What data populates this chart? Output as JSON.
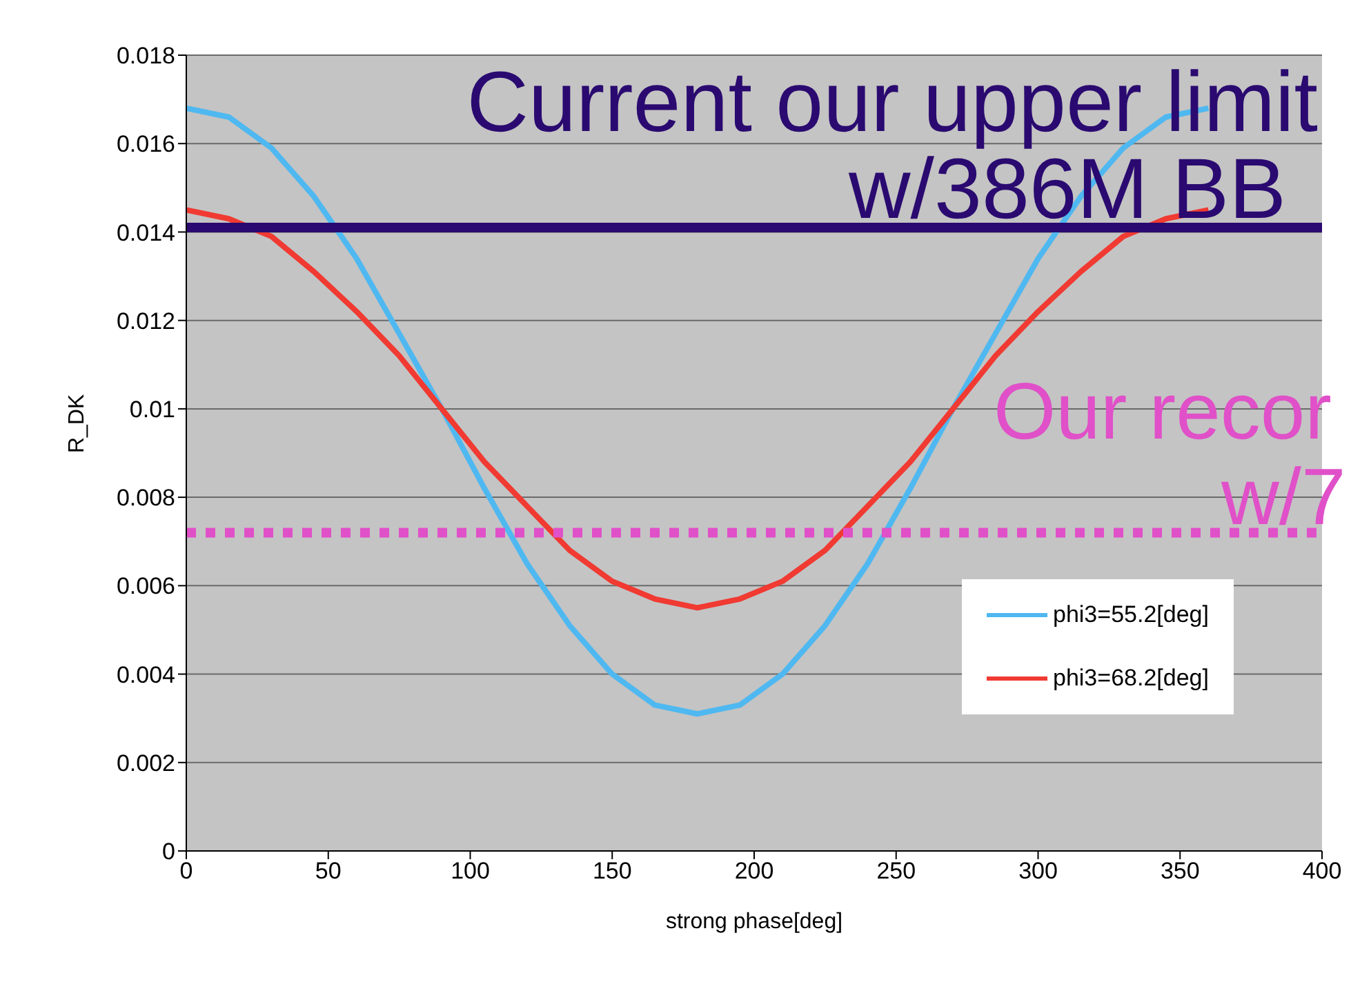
{
  "chart_data": {
    "type": "line",
    "xlabel": "strong phase[deg]",
    "ylabel": "R_DK",
    "x": [
      0,
      15,
      30,
      45,
      60,
      75,
      90,
      105,
      120,
      135,
      150,
      165,
      180,
      195,
      210,
      225,
      240,
      255,
      270,
      285,
      300,
      315,
      330,
      345,
      360
    ],
    "series": [
      {
        "name": "phi3=55.2[deg]",
        "color": "#4fb8f0",
        "values": [
          0.0168,
          0.0166,
          0.0159,
          0.0148,
          0.0134,
          0.0117,
          0.01,
          0.0082,
          0.0065,
          0.0051,
          0.004,
          0.0033,
          0.0031,
          0.0033,
          0.004,
          0.0051,
          0.0065,
          0.0082,
          0.01,
          0.0117,
          0.0134,
          0.0148,
          0.0159,
          0.0166,
          0.0168
        ]
      },
      {
        "name": "phi3=68.2[deg]",
        "color": "#f03a32",
        "values": [
          0.0145,
          0.0143,
          0.0139,
          0.0131,
          0.0122,
          0.0112,
          0.01,
          0.0088,
          0.0078,
          0.0068,
          0.0061,
          0.0057,
          0.0055,
          0.0057,
          0.0061,
          0.0068,
          0.0078,
          0.0088,
          0.01,
          0.0112,
          0.0122,
          0.0131,
          0.0139,
          0.0143,
          0.0145
        ]
      }
    ],
    "xlim": [
      0,
      400
    ],
    "xticks": [
      0,
      50,
      100,
      150,
      200,
      250,
      300,
      350,
      400
    ],
    "ylim": [
      0,
      0.018
    ],
    "yticks": [
      0,
      0.002,
      0.004,
      0.006,
      0.008,
      0.01,
      0.012,
      0.014,
      0.016,
      0.018
    ],
    "ref_lines": [
      {
        "axis": "y",
        "value": 0.0141,
        "color": "#2a0a70",
        "line_style": "solid"
      },
      {
        "axis": "y",
        "value": 0.0072,
        "color": "#e050c8",
        "line_style": "dotted"
      }
    ],
    "annotations": [
      "Current our upper limit",
      "w/386M BB",
      "Our recor",
      "w/7"
    ],
    "grid": "y",
    "legend": "right",
    "marker": "none",
    "line_style": "solid"
  }
}
